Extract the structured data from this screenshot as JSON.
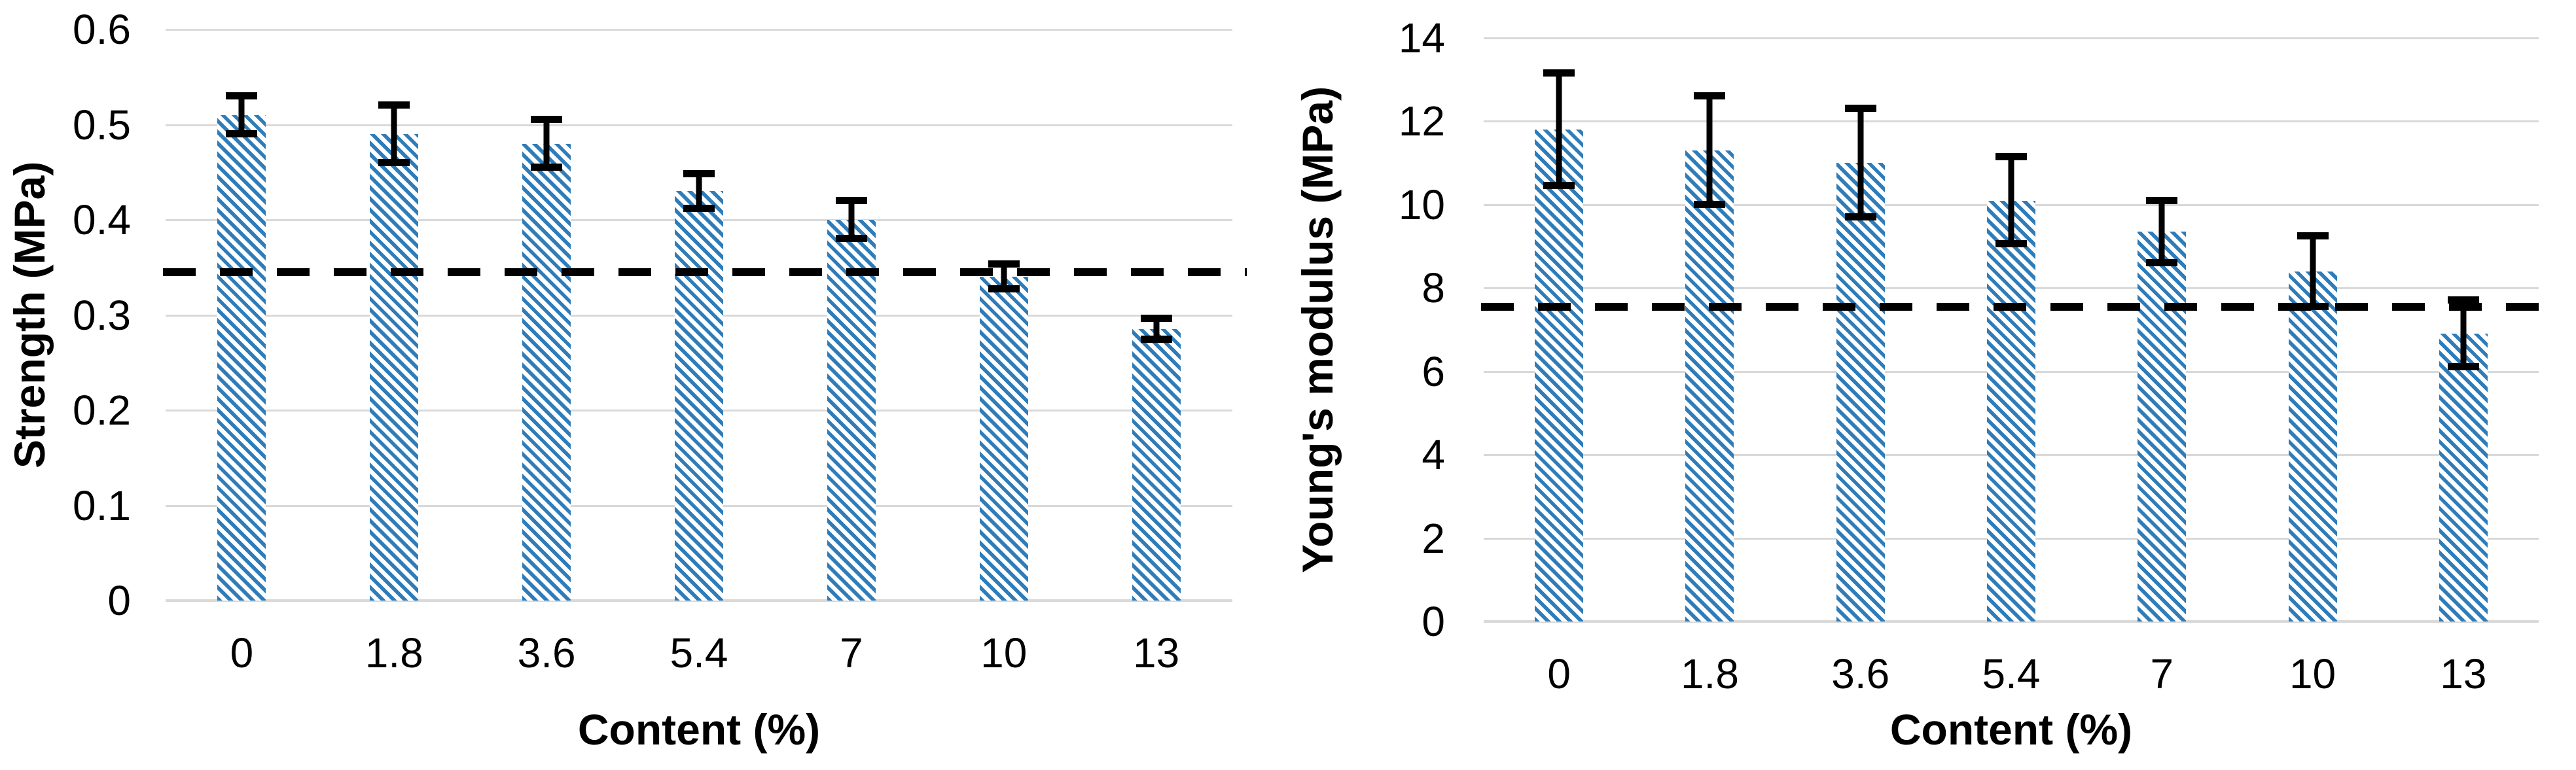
{
  "figure": {
    "background": "#FFFFFF",
    "description": "Two hatched bar charts with error bars and a dashed horizontal reference line"
  },
  "colors": {
    "bar_fill": "#2E7CB9",
    "bar_hatch_background": "#FFFFFF",
    "gridline": "#D9D9D9",
    "error_bar": "#000000",
    "dashed_line": "#000000",
    "text": "#000000"
  },
  "chart_data": [
    {
      "type": "bar",
      "title": "",
      "ylabel": "Strength (MPa)",
      "xlabel": "Content (%)",
      "categories": [
        "0",
        "1.8",
        "3.6",
        "5.4",
        "7",
        "10",
        "13"
      ],
      "values": [
        0.51,
        0.49,
        0.48,
        0.43,
        0.4,
        0.34,
        0.285
      ],
      "errors": [
        0.02,
        0.03,
        0.025,
        0.018,
        0.02,
        0.013,
        0.011
      ],
      "dashed_reference_line": 0.345,
      "ylim": [
        0,
        0.6
      ],
      "ytick_labels": [
        "0",
        "0.1",
        "0.2",
        "0.3",
        "0.4",
        "0.5",
        "0.6"
      ],
      "grid": true,
      "legend": "none",
      "bar_style": "blue diagonal hatch"
    },
    {
      "type": "bar",
      "title": "",
      "ylabel": "Young's modulus (MPa)",
      "xlabel": "Content (%)",
      "categories": [
        "0",
        "1.8",
        "3.6",
        "5.4",
        "7",
        "10",
        "13"
      ],
      "values": [
        11.8,
        11.3,
        11.0,
        10.1,
        9.35,
        8.4,
        6.9
      ],
      "errors": [
        1.35,
        1.3,
        1.3,
        1.05,
        0.75,
        0.85,
        0.8
      ],
      "dashed_reference_line": 7.55,
      "ylim": [
        0,
        14
      ],
      "ytick_labels": [
        "0",
        "2",
        "4",
        "6",
        "8",
        "10",
        "12",
        "14"
      ],
      "grid": true,
      "legend": "none",
      "bar_style": "blue diagonal hatch"
    }
  ]
}
